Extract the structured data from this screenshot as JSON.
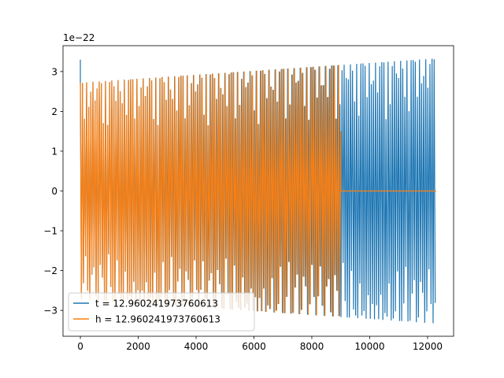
{
  "chart_data": {
    "type": "line",
    "title": "",
    "xlabel": "",
    "ylabel": "",
    "y_scale_label": "1e−22",
    "xlim": [
      -600,
      12900
    ],
    "ylim": [
      -3.65,
      3.65
    ],
    "y_multiplier": 1e-22,
    "x_ticks": [
      0,
      2000,
      4000,
      6000,
      8000,
      10000,
      12000
    ],
    "x_tick_labels": [
      "0",
      "2000",
      "4000",
      "6000",
      "8000",
      "10000",
      "12000"
    ],
    "y_ticks": [
      -3,
      -2,
      -1,
      0,
      1,
      2,
      3
    ],
    "y_tick_labels": [
      "−3",
      "−2",
      "−1",
      "0",
      "1",
      "2",
      "3"
    ],
    "grid": false,
    "legend_position": "lower-left",
    "series": [
      {
        "name": "t = 12.960241973760613",
        "color": "#1f77b4",
        "description_envelope": "oscillation from x=0 to x=12300 with amplitude growing from about 2.72 to 3.33 (e-22)",
        "x_start": 0,
        "x_end": 12300,
        "amp_start": 2.72,
        "amp_end": 3.33,
        "initial_spike": 3.3
      },
      {
        "name": "h = 12.960241973760613",
        "color": "#ff7f0e",
        "x_start": 0,
        "x_end": 9000,
        "amp_start": 2.72,
        "amp_end": 3.33,
        "flat_after": [
          9000,
          12300
        ],
        "flat_value": 0
      }
    ]
  }
}
